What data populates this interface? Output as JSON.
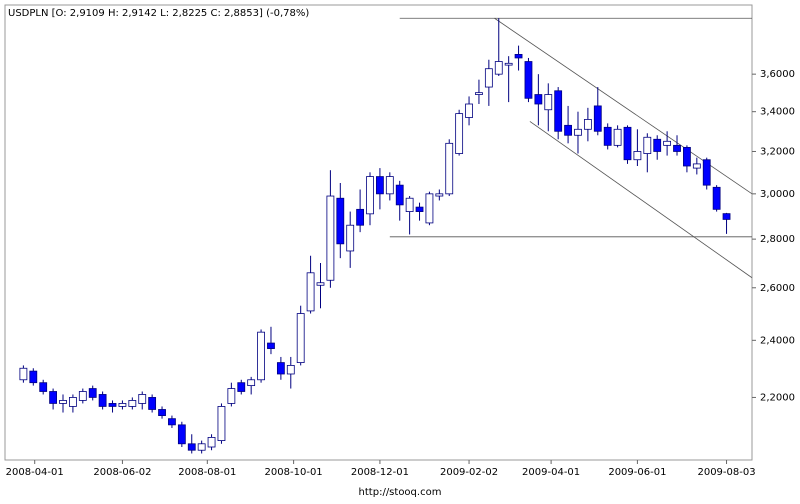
{
  "chart_data": {
    "type": "candlestick",
    "title": "USDPLN [O: 2,9109  H: 2,9142  L: 2,8225  C: 2,8853]  (-0,78%)",
    "footer": "http://stooq.com",
    "up_color": "#ffffff",
    "down_color": "#0000ff",
    "outline_color": "#000080",
    "y_scale": "log",
    "ylim": [
      2.0,
      4.0
    ],
    "yticks": [
      {
        "value": 2.2,
        "label": "2,2000"
      },
      {
        "value": 2.4,
        "label": "2,4000"
      },
      {
        "value": 2.6,
        "label": "2,6000"
      },
      {
        "value": 2.8,
        "label": "2,8000"
      },
      {
        "value": 3.0,
        "label": "3,0000"
      },
      {
        "value": 3.2,
        "label": "3,2000"
      },
      {
        "value": 3.4,
        "label": "3,4000"
      },
      {
        "value": 3.6,
        "label": "3,6000"
      }
    ],
    "xlim": [
      "2008-03-11",
      "2009-08-21"
    ],
    "xticks": [
      "2008-04-01",
      "2008-06-02",
      "2008-08-01",
      "2008-10-01",
      "2008-12-01",
      "2009-02-02",
      "2009-04-01",
      "2009-06-01",
      "2009-08-03"
    ],
    "x": [
      "2008-03-24",
      "2008-03-31",
      "2008-04-07",
      "2008-04-14",
      "2008-04-21",
      "2008-04-28",
      "2008-05-05",
      "2008-05-12",
      "2008-05-19",
      "2008-05-26",
      "2008-06-02",
      "2008-06-09",
      "2008-06-16",
      "2008-06-23",
      "2008-06-30",
      "2008-07-07",
      "2008-07-14",
      "2008-07-21",
      "2008-07-28",
      "2008-08-04",
      "2008-08-11",
      "2008-08-18",
      "2008-08-25",
      "2008-09-01",
      "2008-09-08",
      "2008-09-15",
      "2008-09-22",
      "2008-09-29",
      "2008-10-06",
      "2008-10-13",
      "2008-10-20",
      "2008-10-27",
      "2008-11-03",
      "2008-11-10",
      "2008-11-17",
      "2008-11-24",
      "2008-12-01",
      "2008-12-08",
      "2008-12-15",
      "2008-12-22",
      "2008-12-29",
      "2009-01-05",
      "2009-01-12",
      "2009-01-19",
      "2009-01-26",
      "2009-02-02",
      "2009-02-09",
      "2009-02-16",
      "2009-02-23",
      "2009-03-02",
      "2009-03-09",
      "2009-03-16",
      "2009-03-23",
      "2009-03-30",
      "2009-04-06",
      "2009-04-13",
      "2009-04-20",
      "2009-04-27",
      "2009-05-04",
      "2009-05-11",
      "2009-05-18",
      "2009-05-25",
      "2009-06-01",
      "2009-06-08",
      "2009-06-15",
      "2009-06-22",
      "2009-06-29",
      "2009-07-06",
      "2009-07-13",
      "2009-07-20",
      "2009-07-27",
      "2009-08-03"
    ],
    "open": [
      2.26,
      2.29,
      2.25,
      2.22,
      2.18,
      2.17,
      2.19,
      2.23,
      2.21,
      2.18,
      2.17,
      2.17,
      2.18,
      2.2,
      2.16,
      2.13,
      2.11,
      2.05,
      2.03,
      2.04,
      2.06,
      2.18,
      2.25,
      2.24,
      2.26,
      2.39,
      2.32,
      2.28,
      2.32,
      2.51,
      2.61,
      2.63,
      2.98,
      2.75,
      2.93,
      2.91,
      3.08,
      3.0,
      3.04,
      2.92,
      2.94,
      2.87,
      2.99,
      3.0,
      3.19,
      3.37,
      3.49,
      3.53,
      3.6,
      3.65,
      3.71,
      3.67,
      3.49,
      3.41,
      3.51,
      3.33,
      3.28,
      3.31,
      3.43,
      3.32,
      3.23,
      3.32,
      3.16,
      3.19,
      3.26,
      3.23,
      3.23,
      3.22,
      3.12,
      3.16,
      3.03,
      2.9109
    ],
    "high": [
      2.31,
      2.3,
      2.26,
      2.23,
      2.21,
      2.21,
      2.23,
      2.24,
      2.22,
      2.19,
      2.19,
      2.2,
      2.22,
      2.21,
      2.17,
      2.14,
      2.12,
      2.08,
      2.06,
      2.08,
      2.18,
      2.25,
      2.26,
      2.27,
      2.44,
      2.45,
      2.34,
      2.34,
      2.53,
      2.73,
      2.7,
      3.11,
      3.05,
      2.92,
      3.02,
      3.1,
      3.12,
      3.1,
      3.06,
      2.99,
      2.96,
      3.01,
      3.02,
      3.26,
      3.41,
      3.48,
      3.57,
      3.68,
      3.92,
      3.7,
      3.76,
      3.69,
      3.6,
      3.55,
      3.53,
      3.43,
      3.4,
      3.42,
      3.53,
      3.34,
      3.33,
      3.33,
      3.31,
      3.29,
      3.28,
      3.3,
      3.28,
      3.23,
      3.17,
      3.17,
      3.04,
      2.9142
    ],
    "low": [
      2.25,
      2.24,
      2.21,
      2.16,
      2.15,
      2.15,
      2.18,
      2.19,
      2.16,
      2.15,
      2.16,
      2.16,
      2.16,
      2.15,
      2.13,
      2.1,
      2.04,
      2.02,
      2.02,
      2.03,
      2.05,
      2.17,
      2.21,
      2.21,
      2.25,
      2.35,
      2.26,
      2.23,
      2.31,
      2.5,
      2.52,
      2.6,
      2.72,
      2.68,
      2.83,
      2.86,
      2.93,
      2.97,
      2.88,
      2.82,
      2.88,
      2.86,
      2.97,
      2.99,
      3.18,
      3.33,
      3.44,
      3.43,
      3.59,
      3.45,
      3.62,
      3.45,
      3.33,
      3.3,
      3.26,
      3.24,
      3.19,
      3.25,
      3.28,
      3.21,
      3.22,
      3.14,
      3.13,
      3.1,
      3.16,
      3.18,
      3.18,
      3.1,
      3.09,
      3.02,
      2.92,
      2.8225
    ],
    "close": [
      2.3,
      2.25,
      2.22,
      2.18,
      2.19,
      2.2,
      2.22,
      2.2,
      2.17,
      2.17,
      2.18,
      2.19,
      2.21,
      2.16,
      2.14,
      2.11,
      2.05,
      2.03,
      2.05,
      2.07,
      2.17,
      2.23,
      2.22,
      2.26,
      2.43,
      2.37,
      2.28,
      2.31,
      2.5,
      2.66,
      2.62,
      2.99,
      2.78,
      2.86,
      2.86,
      3.08,
      3.0,
      3.08,
      2.95,
      2.98,
      2.92,
      3.0,
      3.0,
      3.24,
      3.39,
      3.44,
      3.5,
      3.63,
      3.67,
      3.66,
      3.69,
      3.47,
      3.44,
      3.49,
      3.3,
      3.28,
      3.31,
      3.36,
      3.3,
      3.23,
      3.31,
      3.16,
      3.2,
      3.27,
      3.2,
      3.25,
      3.2,
      3.13,
      3.14,
      3.04,
      2.93,
      2.8853
    ],
    "lines": [
      {
        "x": [
          "2008-12-15",
          "2009-08-21"
        ],
        "y": [
          3.92,
          3.92
        ]
      },
      {
        "x": [
          "2008-12-08",
          "2009-08-21"
        ],
        "y": [
          2.81,
          2.81
        ]
      },
      {
        "x": [
          "2009-02-20",
          "2009-08-21"
        ],
        "y": [
          3.92,
          3.0
        ]
      },
      {
        "x": [
          "2009-03-17",
          "2009-08-21"
        ],
        "y": [
          3.35,
          2.64
        ]
      }
    ]
  }
}
